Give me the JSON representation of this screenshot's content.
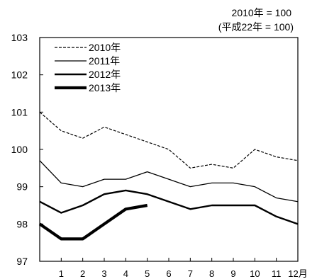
{
  "chart_data": {
    "type": "line",
    "note_line1": "2010年 = 100",
    "note_line2": "(平成22年 = 100)",
    "xlabel": "",
    "ylabel": "",
    "x_start": 0,
    "xticks": [
      "1",
      "2",
      "3",
      "4",
      "5",
      "6",
      "7",
      "8",
      "9",
      "10",
      "11",
      "12月"
    ],
    "xlim": [
      0,
      12
    ],
    "ylim": [
      97,
      103
    ],
    "yticks": [
      "97",
      "98",
      "99",
      "100",
      "101",
      "102",
      "103"
    ],
    "grid": false,
    "legend_position": "top-left",
    "series": [
      {
        "name": "2010年",
        "style": "dashed",
        "values": [
          101.0,
          100.5,
          100.3,
          100.6,
          100.4,
          100.2,
          100.0,
          99.5,
          99.6,
          99.5,
          100.0,
          99.8,
          99.7
        ]
      },
      {
        "name": "2011年",
        "style": "thin",
        "values": [
          99.7,
          99.1,
          99.0,
          99.2,
          99.2,
          99.4,
          99.2,
          99.0,
          99.1,
          99.1,
          99.0,
          98.7,
          98.6
        ]
      },
      {
        "name": "2012年",
        "style": "medium",
        "values": [
          98.6,
          98.3,
          98.5,
          98.8,
          98.9,
          98.8,
          98.6,
          98.4,
          98.5,
          98.5,
          98.5,
          98.2,
          98.0
        ]
      },
      {
        "name": "2013年",
        "style": "thick",
        "values": [
          98.0,
          97.6,
          97.6,
          98.0,
          98.4,
          98.5
        ]
      }
    ]
  }
}
